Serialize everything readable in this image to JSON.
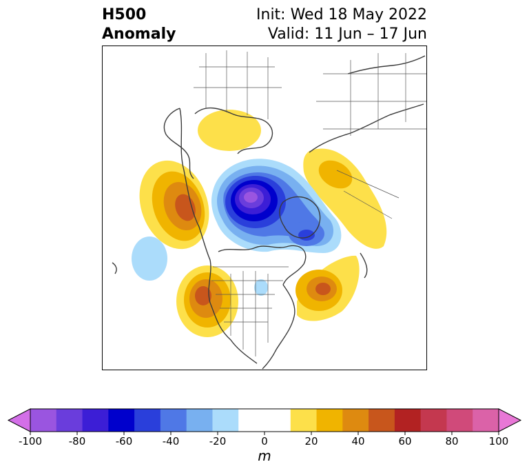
{
  "title": {
    "left_line1": "H500",
    "left_line2": "Anomaly",
    "right_line1": "Init: Wed 18 May 2022",
    "right_line2": "Valid: 11 Jun – 17 Jun"
  },
  "colorbar": {
    "units": "m",
    "min": -100,
    "max": 100,
    "step": 10,
    "extend": "both",
    "ticks": [
      "-100",
      "-80",
      "-60",
      "-40",
      "-20",
      "0",
      "20",
      "40",
      "60",
      "80",
      "100"
    ],
    "colors": [
      "#d36fe8",
      "#9a55e0",
      "#6a3ddc",
      "#3c1ed6",
      "#0000cc",
      "#2a3fdb",
      "#4f78e6",
      "#78b0f0",
      "#abdcfb",
      "#ffffff",
      "#ffffff",
      "#fde04a",
      "#f0b400",
      "#de8a10",
      "#c8561c",
      "#b22222",
      "#c4384f",
      "#d04a7a",
      "#db62a8",
      "#e877d6"
    ]
  },
  "map": {
    "projection": "polar stereographic, North Pole",
    "anomalies": [
      {
        "name": "arctic-low",
        "sign": "negative",
        "peak": -100
      },
      {
        "name": "baffin-low",
        "sign": "negative",
        "peak": -40
      },
      {
        "name": "pacific-low",
        "sign": "negative",
        "peak": -20
      },
      {
        "name": "great-lakes-low",
        "sign": "negative",
        "peak": -20
      },
      {
        "name": "scandinavia-high",
        "sign": "positive",
        "peak": 20
      },
      {
        "name": "siberia-high",
        "sign": "positive",
        "peak": 30
      },
      {
        "name": "bering-high",
        "sign": "positive",
        "peak": 50
      },
      {
        "name": "western-us-high",
        "sign": "positive",
        "peak": 50
      },
      {
        "name": "atlantic-high",
        "sign": "positive",
        "peak": 50
      }
    ]
  }
}
